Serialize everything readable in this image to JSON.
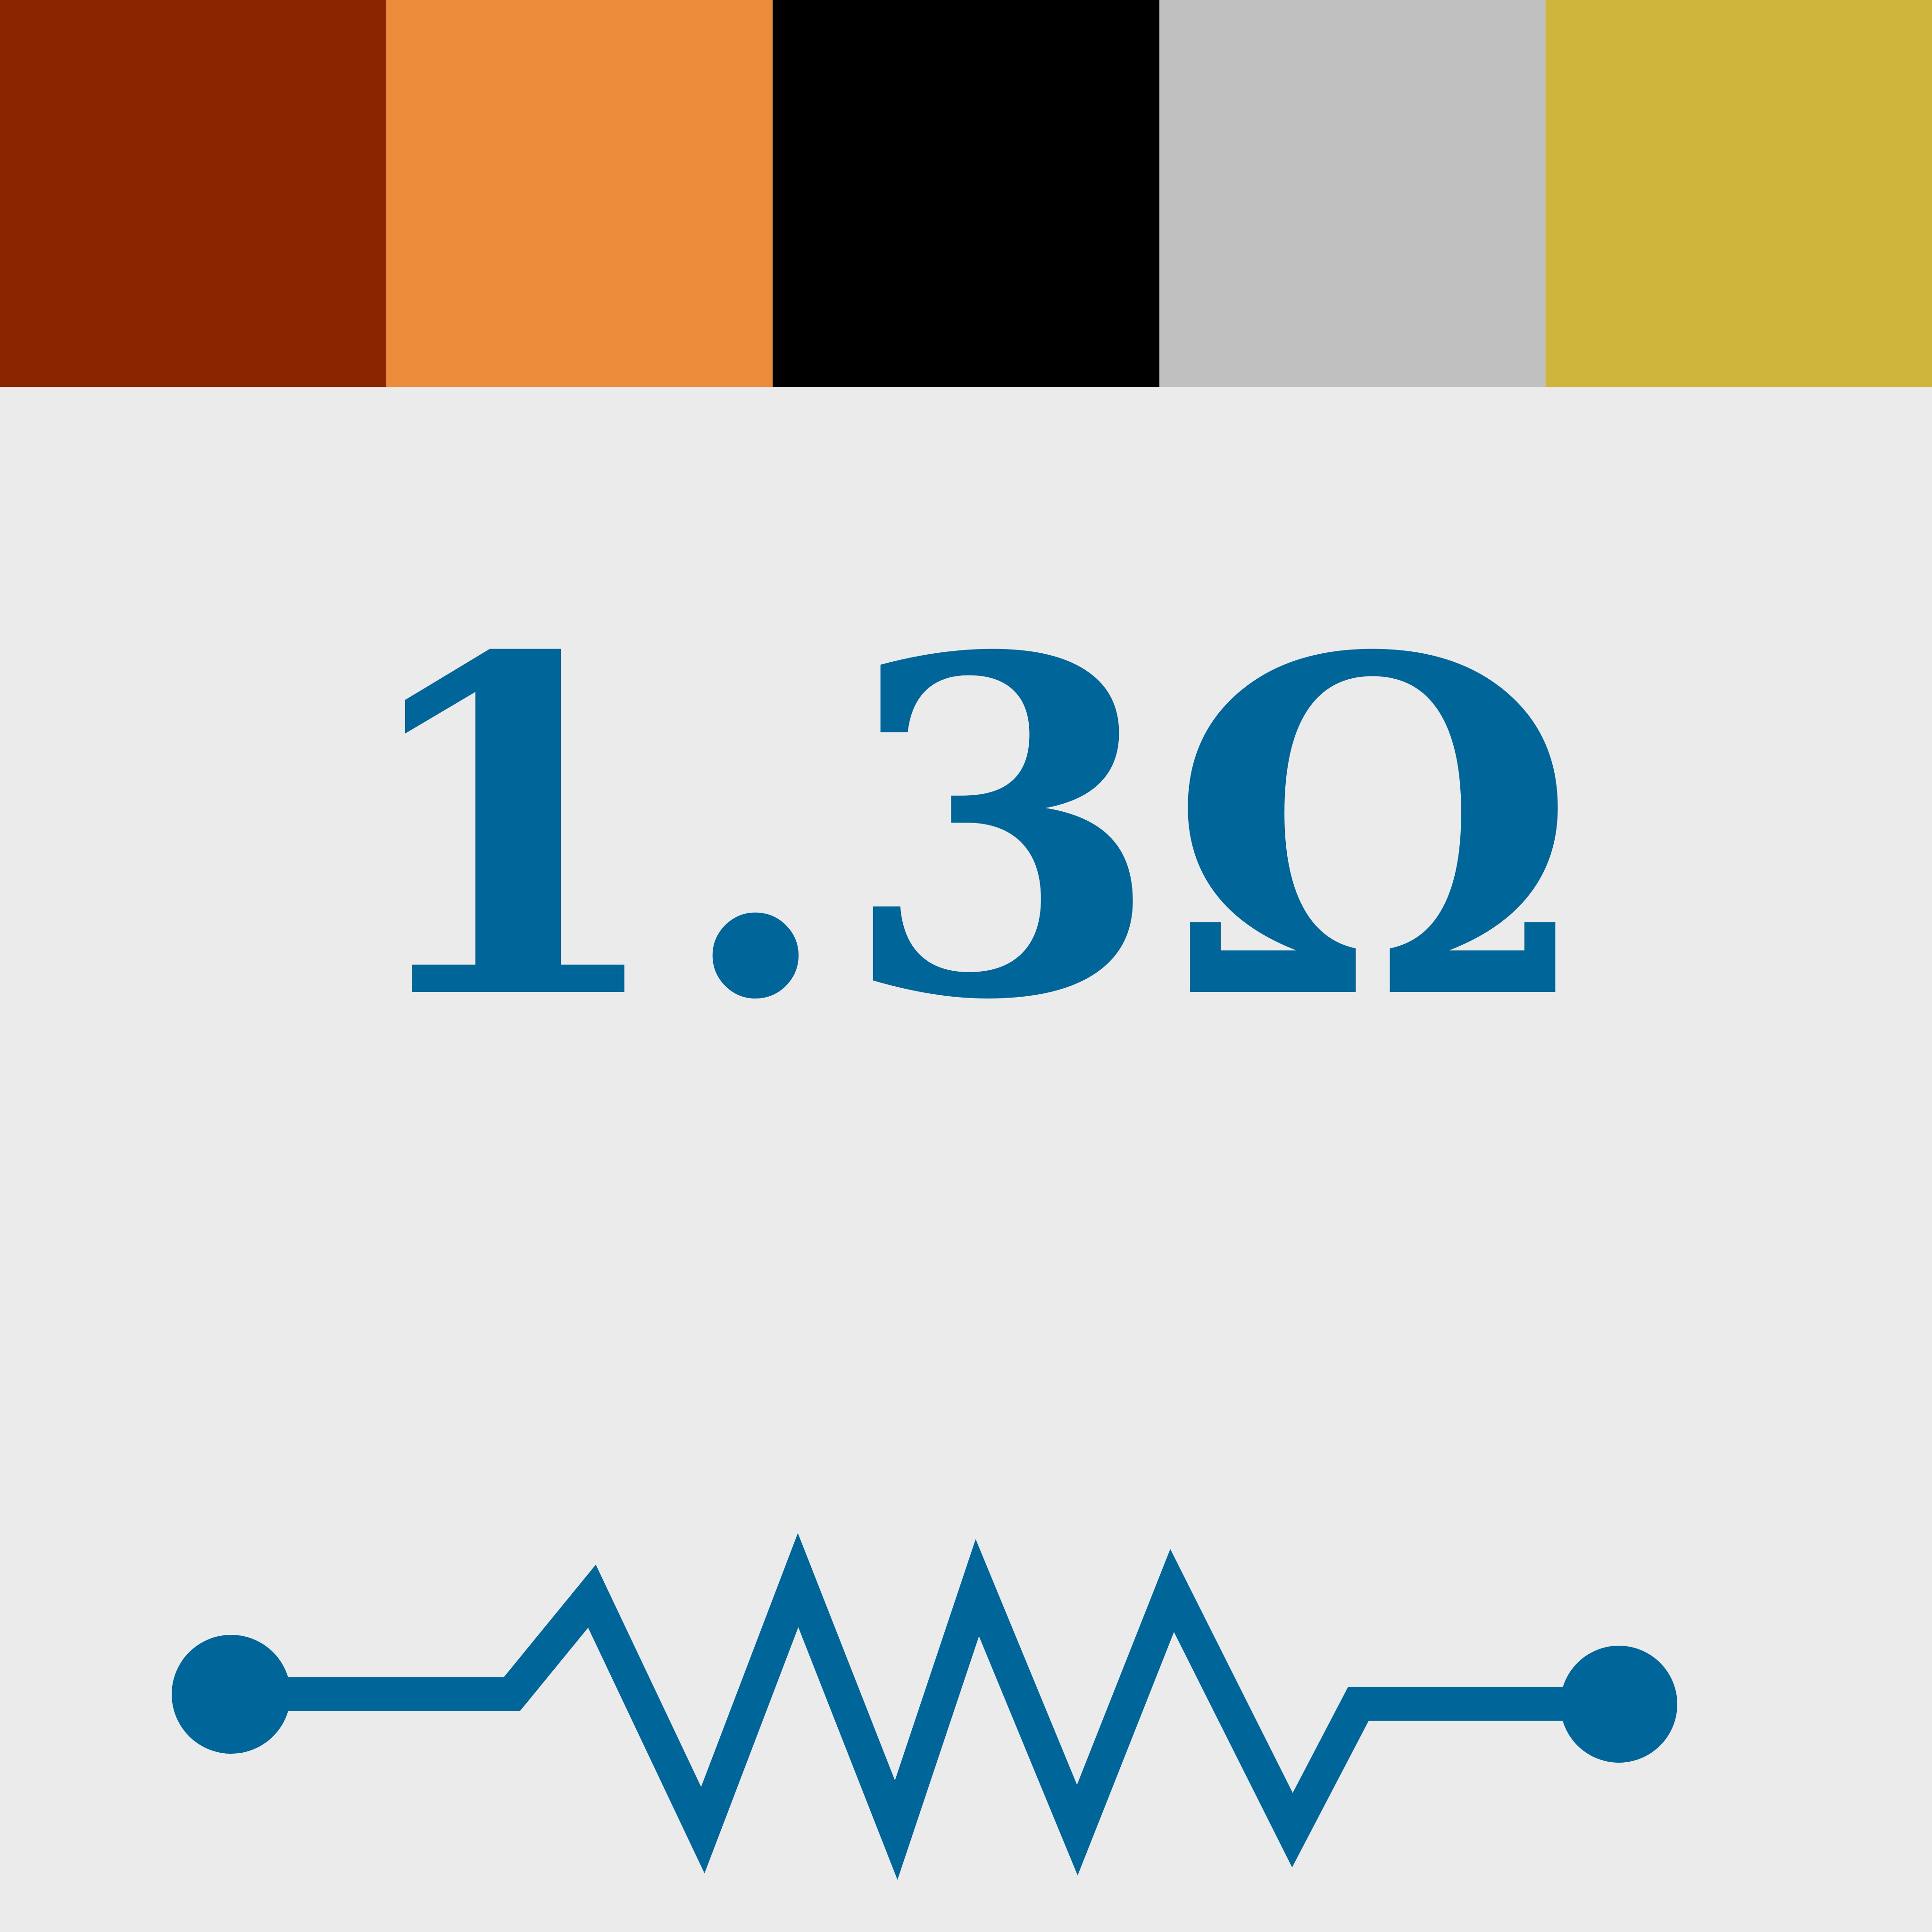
{
  "color_bands": [
    {
      "name": "brown",
      "color": "#8b2500"
    },
    {
      "name": "orange",
      "color": "#ec8b3a"
    },
    {
      "name": "black",
      "color": "#000000"
    },
    {
      "name": "silver",
      "color": "#c0c0c0"
    },
    {
      "name": "gold",
      "color": "#cfb53b"
    }
  ],
  "value_label": "1.3Ω",
  "symbol_color": "#006699",
  "background_color": "#ebebeb",
  "icons": {
    "resistor": "resistor-symbol-icon"
  }
}
